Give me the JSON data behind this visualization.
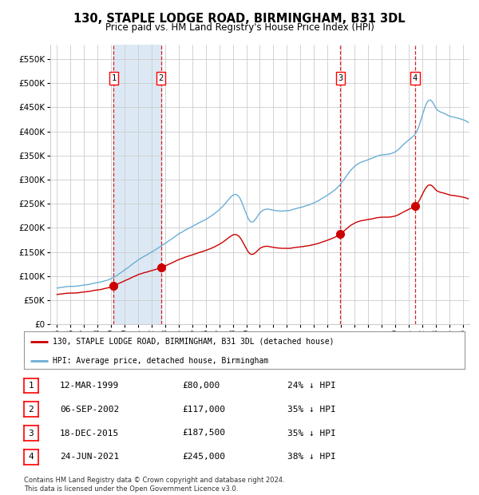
{
  "title": "130, STAPLE LODGE ROAD, BIRMINGHAM, B31 3DL",
  "subtitle": "Price paid vs. HM Land Registry's House Price Index (HPI)",
  "title_fontsize": 10.5,
  "subtitle_fontsize": 8.5,
  "background_color": "#ffffff",
  "plot_bg_color": "#ffffff",
  "grid_color": "#cccccc",
  "hpi_line_color": "#6baed6",
  "price_line_color": "#cc0000",
  "sale_marker_color": "#cc0000",
  "sale_vline_color": "#cc0000",
  "shade_color": "#dce9f5",
  "ylim": [
    0,
    580000
  ],
  "yticks": [
    0,
    50000,
    100000,
    150000,
    200000,
    250000,
    300000,
    350000,
    400000,
    450000,
    500000,
    550000
  ],
  "sales": [
    {
      "label": "1",
      "date_num": 1999.19,
      "price": 80000,
      "date_str": "12-MAR-1999",
      "pct": "24% ↓ HPI"
    },
    {
      "label": "2",
      "date_num": 2002.68,
      "price": 117000,
      "date_str": "06-SEP-2002",
      "pct": "35% ↓ HPI"
    },
    {
      "label": "3",
      "date_num": 2015.96,
      "price": 187500,
      "date_str": "18-DEC-2015",
      "pct": "35% ↓ HPI"
    },
    {
      "label": "4",
      "date_num": 2021.48,
      "price": 245000,
      "date_str": "24-JUN-2021",
      "pct": "38% ↓ HPI"
    }
  ],
  "legend_label_price": "130, STAPLE LODGE ROAD, BIRMINGHAM, B31 3DL (detached house)",
  "legend_label_hpi": "HPI: Average price, detached house, Birmingham",
  "footnote": "Contains HM Land Registry data © Crown copyright and database right 2024.\nThis data is licensed under the Open Government Licence v3.0.",
  "table_rows": [
    [
      "1",
      "12-MAR-1999",
      "£80,000",
      "24% ↓ HPI"
    ],
    [
      "2",
      "06-SEP-2002",
      "£117,000",
      "35% ↓ HPI"
    ],
    [
      "3",
      "18-DEC-2015",
      "£187,500",
      "35% ↓ HPI"
    ],
    [
      "4",
      "24-JUN-2021",
      "£245,000",
      "38% ↓ HPI"
    ]
  ],
  "xlim": [
    1994.5,
    2025.5
  ],
  "xtick_years": [
    1995,
    1996,
    1997,
    1998,
    1999,
    2000,
    2001,
    2002,
    2003,
    2004,
    2005,
    2006,
    2007,
    2008,
    2009,
    2010,
    2011,
    2012,
    2013,
    2014,
    2015,
    2016,
    2017,
    2018,
    2019,
    2020,
    2021,
    2022,
    2023,
    2024,
    2025
  ]
}
